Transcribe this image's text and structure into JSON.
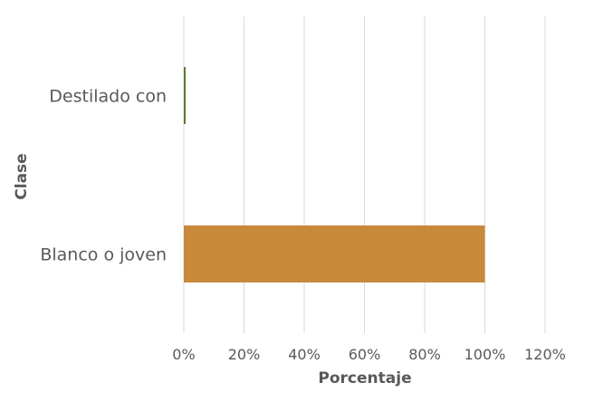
{
  "chart_data": {
    "type": "bar",
    "orientation": "horizontal",
    "categories": [
      "Destilado con",
      "Blanco o joven"
    ],
    "values": [
      0.5,
      100
    ],
    "colors": [
      "#5b7a2c",
      "#c8893b"
    ],
    "xlabel": "Porcentaje",
    "ylabel": "Clase",
    "xlim": [
      0,
      120
    ],
    "xticks": [
      "0%",
      "20%",
      "40%",
      "60%",
      "80%",
      "100%",
      "120%"
    ],
    "grid": true,
    "legend": "none"
  }
}
